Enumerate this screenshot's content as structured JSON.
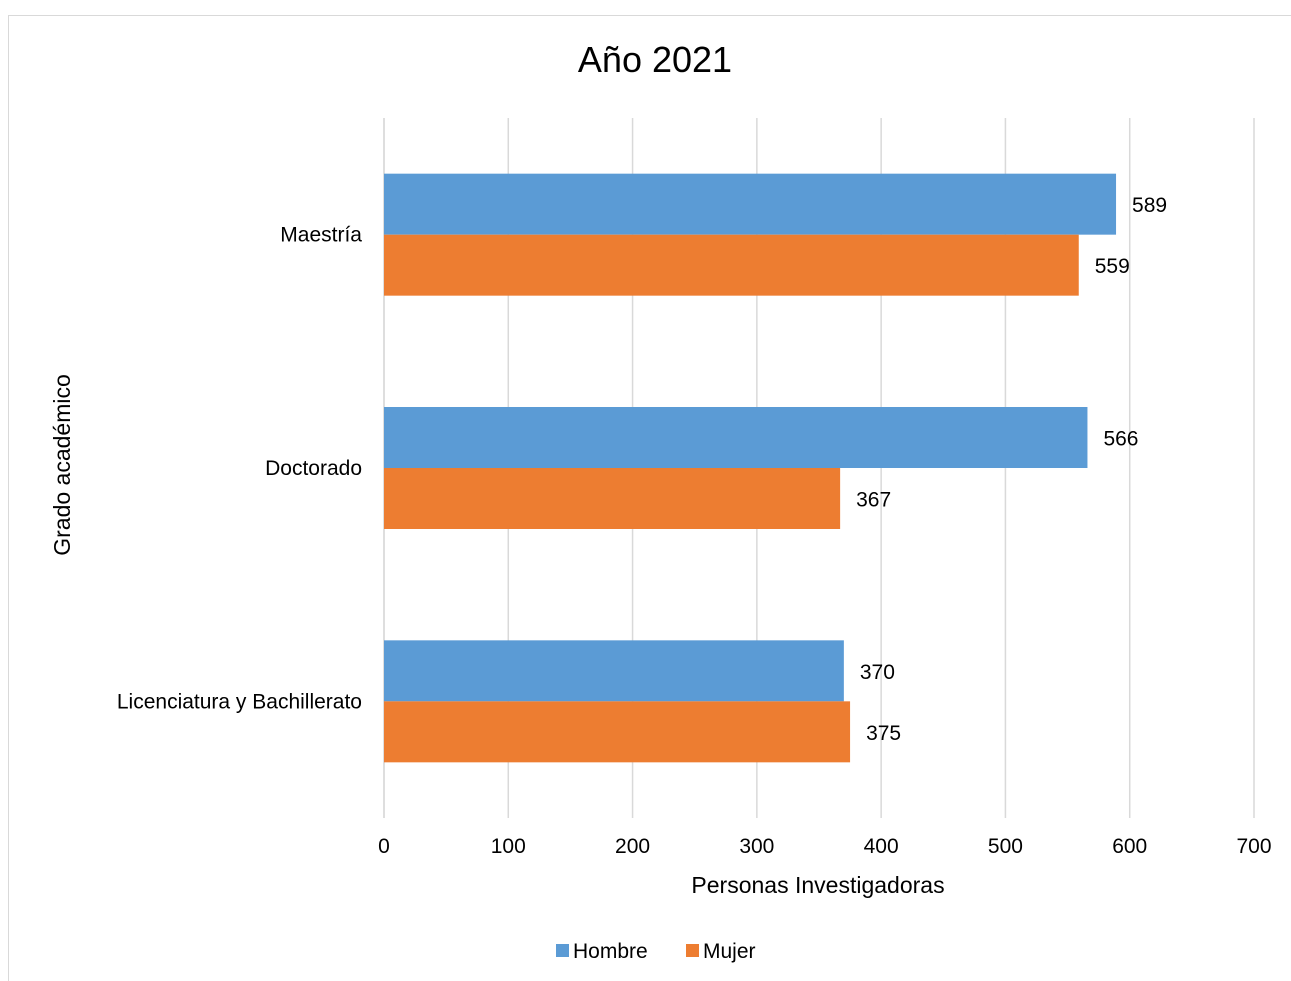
{
  "chart_data": {
    "type": "bar",
    "orientation": "horizontal",
    "title": "Año 2021",
    "xlabel": "Personas Investigadoras",
    "ylabel": "Grado académico",
    "categories": [
      "Maestría",
      "Doctorado",
      "Licenciatura y Bachillerato"
    ],
    "series": [
      {
        "name": "Hombre",
        "color": "#5b9bd5",
        "values": [
          589,
          566,
          370
        ]
      },
      {
        "name": "Mujer",
        "color": "#ed7d31",
        "values": [
          559,
          367,
          375
        ]
      }
    ],
    "xlim": [
      0,
      700
    ],
    "xticks": [
      "0",
      "100",
      "200",
      "300",
      "400",
      "500",
      "600",
      "700"
    ],
    "grid": true,
    "data_labels": true,
    "legend": "bottom"
  }
}
